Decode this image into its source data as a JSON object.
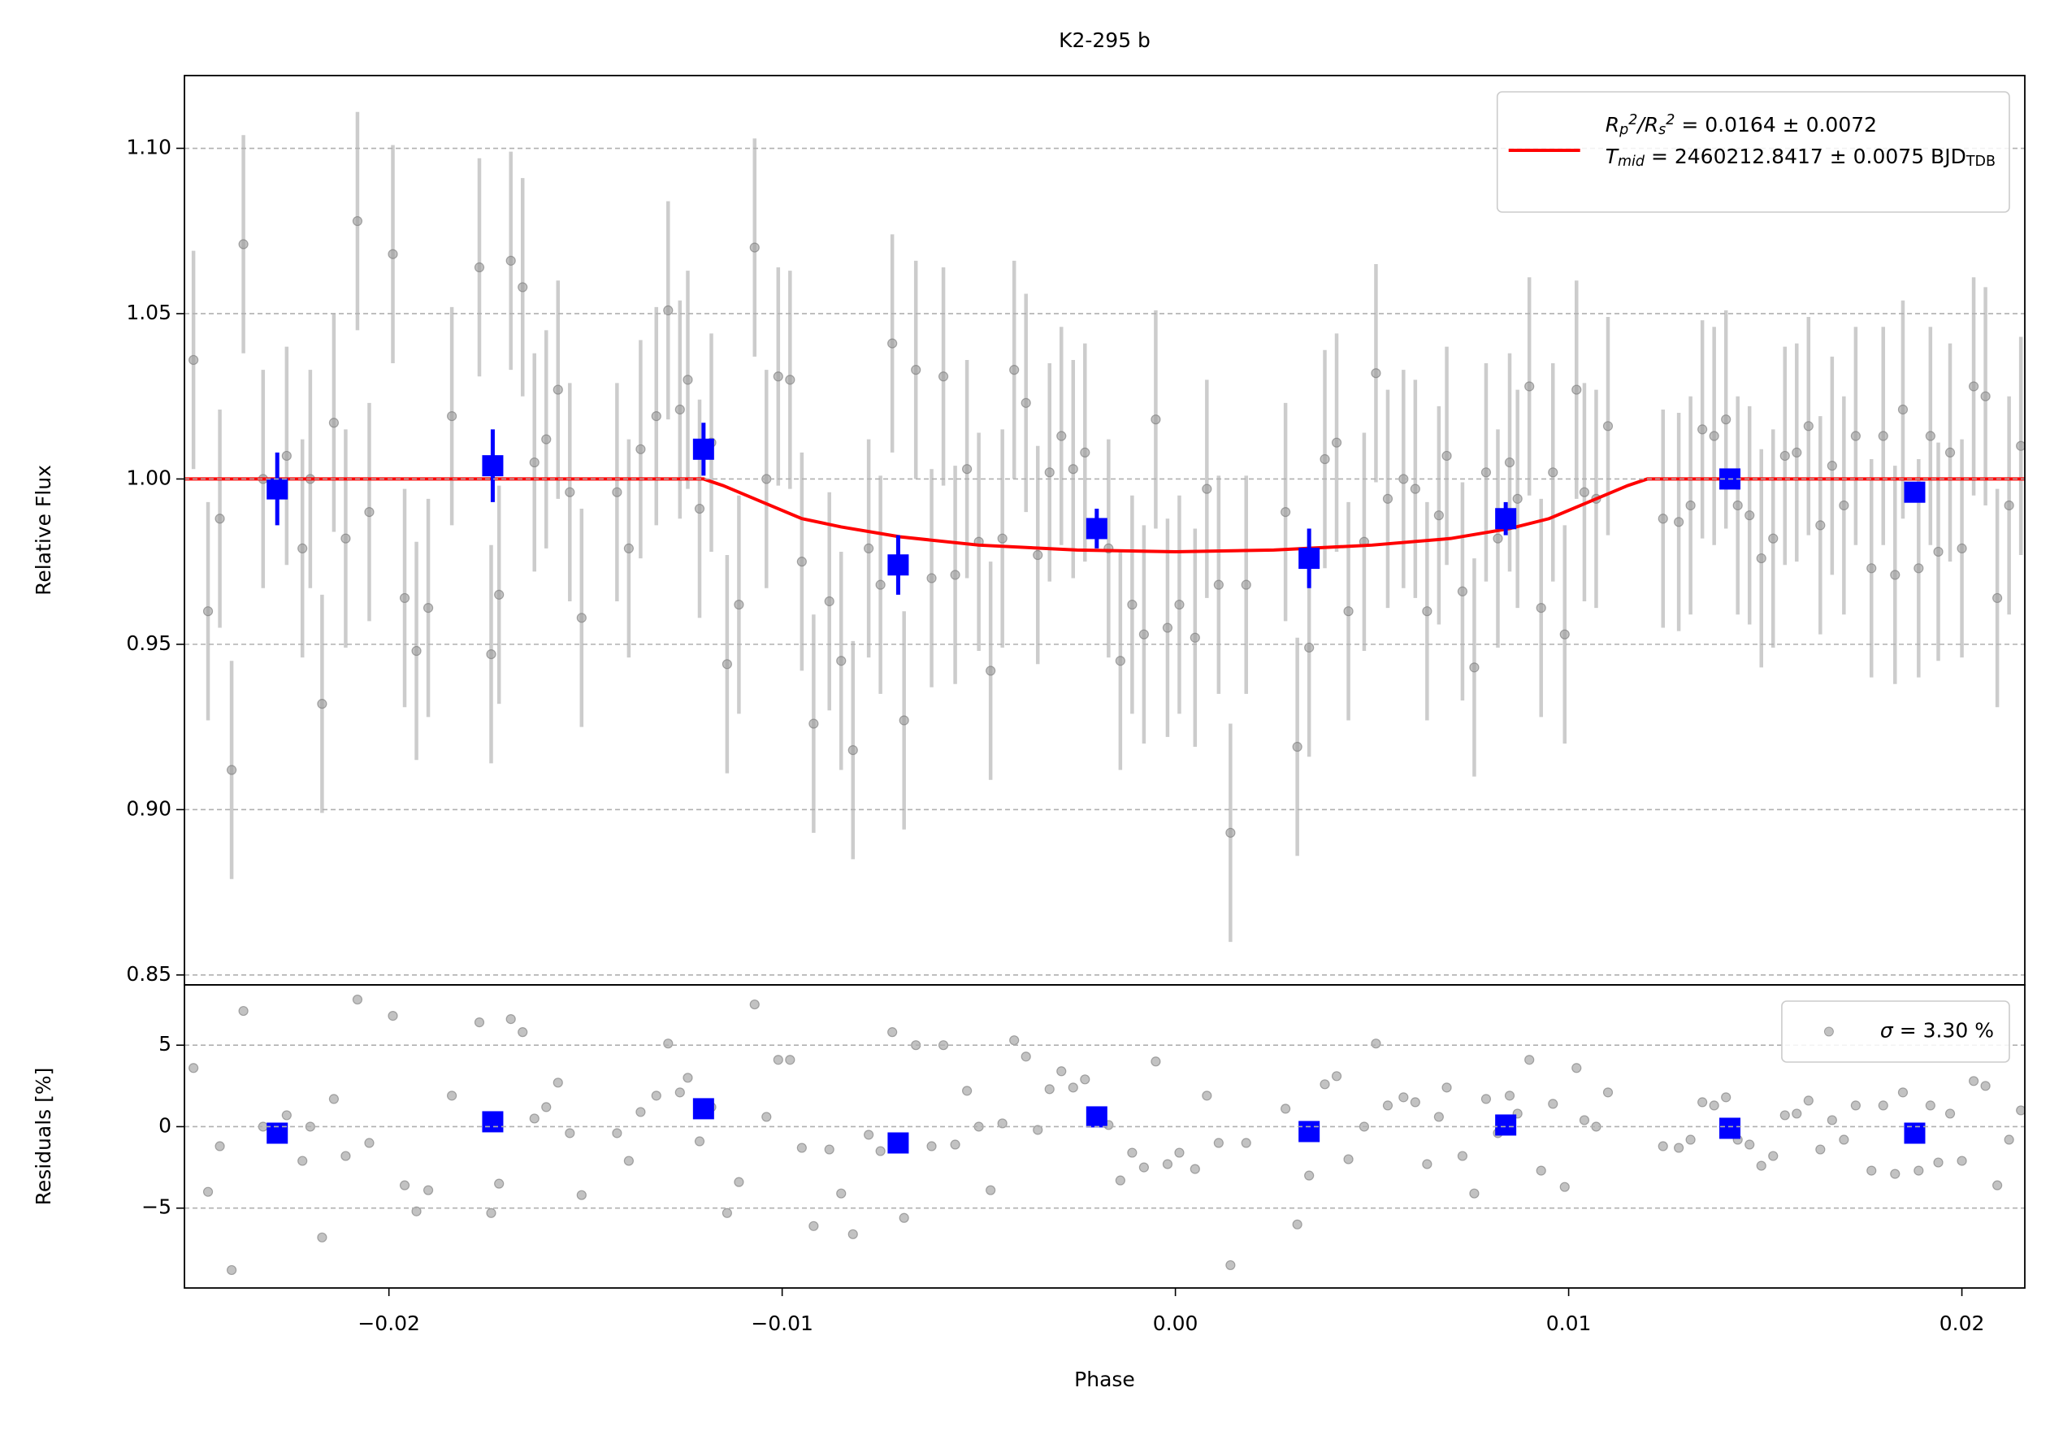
{
  "chart_data": [
    {
      "type": "scatter",
      "title": "K2-295 b",
      "ylabel": "Relative Flux",
      "xlim": [
        -0.0252,
        0.0216
      ],
      "ylim": [
        0.847,
        1.122
      ],
      "yticks": [
        0.85,
        {
          "value": 0.9,
          "label": "0.90"
        },
        0.95,
        {
          "value": 1.0,
          "label": "1.00"
        },
        1.05,
        {
          "value": 1.1,
          "label": "1.10"
        }
      ],
      "grid": true,
      "legend": "upper right",
      "series": [
        {
          "marker": "o",
          "color": "#999999",
          "ecolor": "#cccccc",
          "error": 0.033,
          "x": [
            -0.02497,
            -0.0246,
            -0.0243,
            -0.024,
            -0.0237,
            -0.0232,
            -0.0226,
            -0.0222,
            -0.022,
            -0.0217,
            -0.0214,
            -0.0211,
            -0.0208,
            -0.0205,
            -0.0199,
            -0.0196,
            -0.0193,
            -0.019,
            -0.0184,
            -0.0177,
            -0.0174,
            -0.0172,
            -0.0169,
            -0.0166,
            -0.0163,
            -0.016,
            -0.0157,
            -0.0154,
            -0.0151,
            -0.0142,
            -0.0139,
            -0.0136,
            -0.0132,
            -0.0129,
            -0.0126,
            -0.0124,
            -0.0121,
            -0.0118,
            -0.0114,
            -0.0111,
            -0.0107,
            -0.0104,
            -0.0101,
            -0.0098,
            -0.0095,
            -0.0092,
            -0.0088,
            -0.0085,
            -0.0082,
            -0.0078,
            -0.0075,
            -0.0072,
            -0.0069,
            -0.0066,
            -0.0062,
            -0.0059,
            -0.0056,
            -0.0053,
            -0.005,
            -0.0047,
            -0.0044,
            -0.0041,
            -0.0038,
            -0.0035,
            -0.0032,
            -0.0029,
            -0.0026,
            -0.0023,
            -0.0017,
            -0.0014,
            -0.0011,
            -0.0008,
            -0.0005,
            -0.0002,
            0.0001,
            0.0005,
            0.0008,
            0.0011,
            0.0014,
            0.0018,
            0.0028,
            0.0031,
            0.0034,
            0.0038,
            0.0041,
            0.0044,
            0.0048,
            0.0051,
            0.0054,
            0.0058,
            0.0061,
            0.0064,
            0.0067,
            0.0069,
            0.0073,
            0.0076,
            0.0079,
            0.0082,
            0.0085,
            0.0087,
            0.009,
            0.0093,
            0.0096,
            0.0099,
            0.0102,
            0.0104,
            0.0107,
            0.011,
            0.0124,
            0.0128,
            0.0131,
            0.0134,
            0.0137,
            0.014,
            0.0143,
            0.0146,
            0.0149,
            0.0152,
            0.0155,
            0.0158,
            0.0161,
            0.0164,
            0.0167,
            0.017,
            0.0173,
            0.0177,
            0.018,
            0.0183,
            0.0185,
            0.0189,
            0.0192,
            0.0194,
            0.0197,
            0.02,
            0.0203,
            0.0206,
            0.0209,
            0.0212,
            0.0215
          ],
          "values": [
            1.036,
            0.96,
            0.988,
            0.912,
            1.071,
            1.0,
            1.007,
            0.979,
            1.0,
            0.932,
            1.017,
            0.982,
            1.078,
            0.99,
            1.068,
            0.964,
            0.948,
            0.961,
            1.019,
            1.064,
            0.947,
            0.965,
            1.066,
            1.058,
            1.005,
            1.012,
            1.027,
            0.996,
            0.958,
            0.996,
            0.979,
            1.009,
            1.019,
            1.051,
            1.021,
            1.03,
            0.991,
            1.011,
            0.944,
            0.962,
            1.07,
            1.0,
            1.031,
            1.03,
            0.975,
            0.926,
            0.963,
            0.945,
            0.918,
            0.979,
            0.968,
            1.041,
            0.927,
            1.033,
            0.97,
            1.031,
            0.971,
            1.003,
            0.981,
            0.942,
            0.982,
            1.033,
            1.023,
            0.977,
            1.002,
            1.013,
            1.003,
            1.008,
            0.979,
            0.945,
            0.962,
            0.953,
            1.018,
            0.955,
            0.962,
            0.952,
            0.997,
            0.968,
            0.893,
            0.968,
            0.99,
            0.919,
            0.949,
            1.006,
            1.011,
            0.96,
            0.981,
            1.032,
            0.994,
            1.0,
            0.997,
            0.96,
            0.989,
            1.007,
            0.966,
            0.943,
            1.002,
            0.982,
            1.005,
            0.994,
            1.028,
            0.961,
            1.002,
            0.953,
            1.027,
            0.996,
            0.994,
            1.016,
            0.988,
            0.987,
            0.992,
            1.015,
            1.013,
            1.018,
            0.992,
            0.989,
            0.976,
            0.982,
            1.007,
            1.008,
            1.016,
            0.986,
            1.004,
            0.992,
            1.013,
            0.973,
            1.013,
            0.971,
            1.021,
            0.973,
            1.013,
            0.978,
            1.008,
            0.979,
            1.028,
            1.025,
            0.964,
            0.992,
            1.01
          ]
        },
        {
          "type": "line",
          "name": "R_{p}^{2}/R_{s}^{2} = 0.0164 ± 0.0072\nT_{mid} = 2460212.8417 ± 0.0075 BJD_{TDB}",
          "color": "#ff0000",
          "x": [
            -0.0252,
            -0.012,
            -0.0115,
            -0.0105,
            -0.0095,
            -0.0085,
            -0.007,
            -0.005,
            -0.0025,
            0.0,
            0.0025,
            0.005,
            0.007,
            0.0085,
            0.0095,
            0.0105,
            0.0115,
            0.012,
            0.0216
          ],
          "values": [
            1.0,
            1.0,
            0.998,
            0.993,
            0.988,
            0.9855,
            0.9825,
            0.98,
            0.9785,
            0.978,
            0.9785,
            0.98,
            0.982,
            0.985,
            0.988,
            0.993,
            0.998,
            1.0,
            1.0
          ]
        },
        {
          "marker": "s",
          "color": "#0000ff",
          "ecolor": "#0000ff",
          "x": [
            -0.02284,
            -0.01736,
            -0.012,
            -0.00705,
            -0.002,
            0.0034,
            0.0084,
            0.0141,
            0.0188
          ],
          "values": [
            0.997,
            1.004,
            1.009,
            0.974,
            0.985,
            0.976,
            0.988,
            1.0,
            0.996
          ],
          "errors": [
            0.011,
            0.011,
            0.008,
            0.009,
            0.006,
            0.009,
            0.005,
            0.003,
            0.003
          ]
        }
      ]
    },
    {
      "type": "scatter",
      "ylabel": "Residuals [%]",
      "xlabel": "Phase",
      "xlim": [
        -0.0252,
        0.0216
      ],
      "ylim": [
        -9.9,
        8.7
      ],
      "xticks": [
        {
          "value": -0.02,
          "label": "−0.02"
        },
        {
          "value": -0.01,
          "label": "−0.01"
        },
        {
          "value": 0.0,
          "label": "0.00"
        },
        0.01,
        0.02
      ],
      "yticks": [
        {
          "value": -5,
          "label": "−5"
        },
        0,
        5
      ],
      "grid": true,
      "legend": "upper right",
      "series": [
        {
          "marker": "o",
          "color": "#999999",
          "name": "σ = 3.30 %",
          "x": [
            -0.02497,
            -0.0246,
            -0.0243,
            -0.024,
            -0.0237,
            -0.0232,
            -0.0226,
            -0.0222,
            -0.022,
            -0.0217,
            -0.0214,
            -0.0211,
            -0.0208,
            -0.0205,
            -0.0199,
            -0.0196,
            -0.0193,
            -0.019,
            -0.0184,
            -0.0177,
            -0.0174,
            -0.0172,
            -0.0169,
            -0.0166,
            -0.0163,
            -0.016,
            -0.0157,
            -0.0154,
            -0.0151,
            -0.0142,
            -0.0139,
            -0.0136,
            -0.0132,
            -0.0129,
            -0.0126,
            -0.0124,
            -0.0121,
            -0.0118,
            -0.0114,
            -0.0111,
            -0.0107,
            -0.0104,
            -0.0101,
            -0.0098,
            -0.0095,
            -0.0092,
            -0.0088,
            -0.0085,
            -0.0082,
            -0.0078,
            -0.0075,
            -0.0072,
            -0.0069,
            -0.0066,
            -0.0062,
            -0.0059,
            -0.0056,
            -0.0053,
            -0.005,
            -0.0047,
            -0.0044,
            -0.0041,
            -0.0038,
            -0.0035,
            -0.0032,
            -0.0029,
            -0.0026,
            -0.0023,
            -0.0017,
            -0.0014,
            -0.0011,
            -0.0008,
            -0.0005,
            -0.0002,
            0.0001,
            0.0005,
            0.0008,
            0.0011,
            0.0014,
            0.0018,
            0.0028,
            0.0031,
            0.0034,
            0.0038,
            0.0041,
            0.0044,
            0.0048,
            0.0051,
            0.0054,
            0.0058,
            0.0061,
            0.0064,
            0.0067,
            0.0069,
            0.0073,
            0.0076,
            0.0079,
            0.0082,
            0.0085,
            0.0087,
            0.009,
            0.0093,
            0.0096,
            0.0099,
            0.0102,
            0.0104,
            0.0107,
            0.011,
            0.0124,
            0.0128,
            0.0131,
            0.0134,
            0.0137,
            0.014,
            0.0143,
            0.0146,
            0.0149,
            0.0152,
            0.0155,
            0.0158,
            0.0161,
            0.0164,
            0.0167,
            0.017,
            0.0173,
            0.0177,
            0.018,
            0.0183,
            0.0185,
            0.0189,
            0.0192,
            0.0194,
            0.0197,
            0.02,
            0.0203,
            0.0206,
            0.0209,
            0.0212,
            0.0215
          ],
          "values": [
            3.6,
            -4.0,
            -1.2,
            -8.8,
            7.1,
            0.0,
            0.7,
            -2.1,
            0.0,
            -6.8,
            1.7,
            -1.8,
            7.8,
            -1.0,
            6.8,
            -3.6,
            -5.2,
            -3.9,
            1.9,
            6.4,
            -5.3,
            -3.5,
            6.6,
            5.8,
            0.5,
            1.2,
            2.7,
            -0.4,
            -4.2,
            -0.4,
            -2.1,
            0.9,
            1.9,
            5.1,
            2.1,
            3.0,
            -0.9,
            1.2,
            -5.3,
            -3.4,
            7.5,
            0.6,
            4.1,
            4.1,
            -1.3,
            -6.1,
            -1.4,
            -4.1,
            -6.6,
            -0.5,
            -1.5,
            5.8,
            -5.6,
            5.0,
            -1.2,
            5.0,
            -1.1,
            2.2,
            0.0,
            -3.9,
            0.2,
            5.3,
            4.3,
            -0.2,
            2.3,
            3.4,
            2.4,
            2.9,
            0.1,
            -3.3,
            -1.6,
            -2.5,
            4.0,
            -2.3,
            -1.6,
            -2.6,
            1.9,
            -1.0,
            -8.5,
            -1.0,
            1.1,
            -6.0,
            -3.0,
            2.6,
            3.1,
            -2.0,
            0.0,
            5.1,
            1.3,
            1.8,
            1.5,
            -2.3,
            0.6,
            2.4,
            -1.8,
            -4.1,
            1.7,
            -0.4,
            1.9,
            0.8,
            4.1,
            -2.7,
            1.4,
            -3.7,
            3.6,
            0.4,
            0.0,
            2.1,
            -1.2,
            -1.3,
            -0.8,
            1.5,
            1.3,
            1.8,
            -0.8,
            -1.1,
            -2.4,
            -1.8,
            0.7,
            0.8,
            1.6,
            -1.4,
            0.4,
            -0.8,
            1.3,
            -2.7,
            1.3,
            -2.9,
            2.1,
            -2.7,
            1.3,
            -2.2,
            0.8,
            -2.1,
            2.8,
            2.5,
            -3.6,
            -0.8,
            1.0
          ]
        },
        {
          "marker": "s",
          "color": "#0000ff",
          "x": [
            -0.02284,
            -0.01736,
            -0.012,
            -0.00705,
            -0.002,
            0.0034,
            0.0084,
            0.0141,
            0.0188
          ],
          "values": [
            -0.4,
            0.3,
            1.1,
            -1.0,
            0.6,
            -0.3,
            0.1,
            -0.1,
            -0.4
          ]
        }
      ]
    }
  ]
}
